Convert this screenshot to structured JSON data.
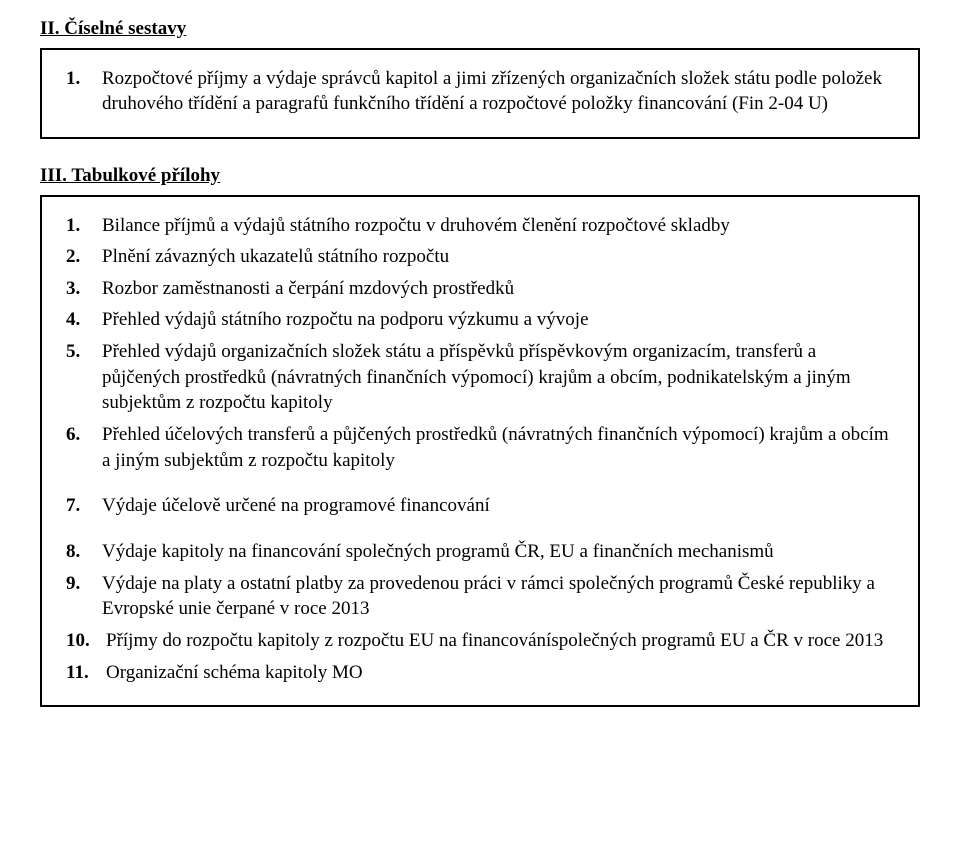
{
  "section2": {
    "header": "II. Číselné sestavy",
    "items": [
      {
        "n": "1.",
        "t": "Rozpočtové příjmy a výdaje správců kapitol a jimi zřízených organizačních složek státu podle položek druhového třídění a paragrafů funkčního třídění a rozpočtové položky financování (Fin 2-04 U)"
      }
    ]
  },
  "section3": {
    "header": "III. Tabulkové přílohy",
    "items": [
      {
        "n": "1.",
        "t": "Bilance příjmů a výdajů státního rozpočtu v druhovém členění rozpočtové skladby"
      },
      {
        "n": "2.",
        "t": "Plnění závazných ukazatelů státního rozpočtu"
      },
      {
        "n": "3.",
        "t": "Rozbor zaměstnanosti a čerpání mzdových prostředků"
      },
      {
        "n": "4.",
        "t": "Přehled výdajů státního rozpočtu na podporu výzkumu a vývoje"
      },
      {
        "n": "5.",
        "t": "Přehled výdajů organizačních složek státu a příspěvků příspěvkovým organizacím, transferů a půjčených prostředků (návratných finančních výpomocí) krajům a obcím, podnikatelským a jiným subjektům z rozpočtu kapitoly"
      },
      {
        "n": "6.",
        "t": "Přehled účelových transferů a půjčených prostředků (návratných finančních výpomocí) krajům a obcím a jiným subjektům z rozpočtu kapitoly"
      },
      {
        "n": "7.",
        "t": "Výdaje účelově určené na programové financování"
      },
      {
        "n": "8.",
        "t": "Výdaje kapitoly na financování společných programů ČR, EU a finančních mechanismů"
      },
      {
        "n": "9.",
        "t": "Výdaje na platy a ostatní platby za provedenou práci v rámci společných programů České republiky a Evropské unie čerpané v roce 2013"
      },
      {
        "n": "10.",
        "t": "Příjmy do rozpočtu kapitoly z rozpočtu EU na financováníspolečných programů EU a ČR v roce 2013"
      },
      {
        "n": "11.",
        "t": "Organizační schéma kapitoly MO"
      }
    ]
  }
}
